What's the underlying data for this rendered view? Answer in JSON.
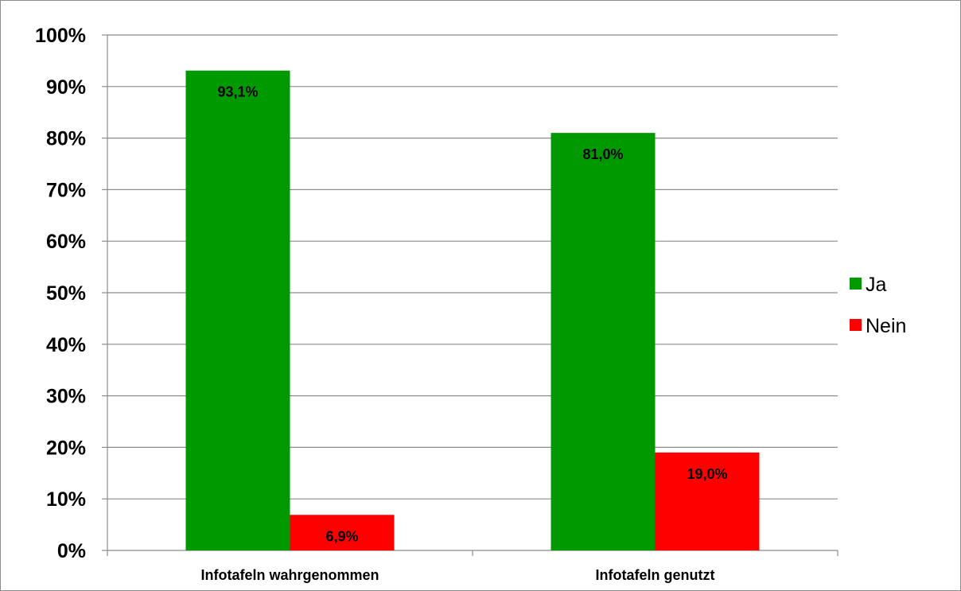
{
  "chart_data": {
    "type": "bar",
    "categories": [
      "Infotafeln wahrgenommen",
      "Infotafeln genutzt"
    ],
    "series": [
      {
        "name": "Ja",
        "values": [
          93.1,
          81.0
        ],
        "labels": [
          "93,1%",
          "81,0%"
        ],
        "color": "#009900"
      },
      {
        "name": "Nein",
        "values": [
          6.9,
          19.0
        ],
        "labels": [
          "6,9%",
          "19,0%"
        ],
        "color": "#ff0000"
      }
    ],
    "ylim": [
      0,
      100
    ],
    "yticks": [
      0,
      10,
      20,
      30,
      40,
      50,
      60,
      70,
      80,
      90,
      100
    ],
    "ytick_labels": [
      "0%",
      "10%",
      "20%",
      "30%",
      "40%",
      "50%",
      "60%",
      "70%",
      "80%",
      "90%",
      "100%"
    ],
    "grid": true,
    "legend_position": "right",
    "gridline_color": "#8c8c8c"
  }
}
